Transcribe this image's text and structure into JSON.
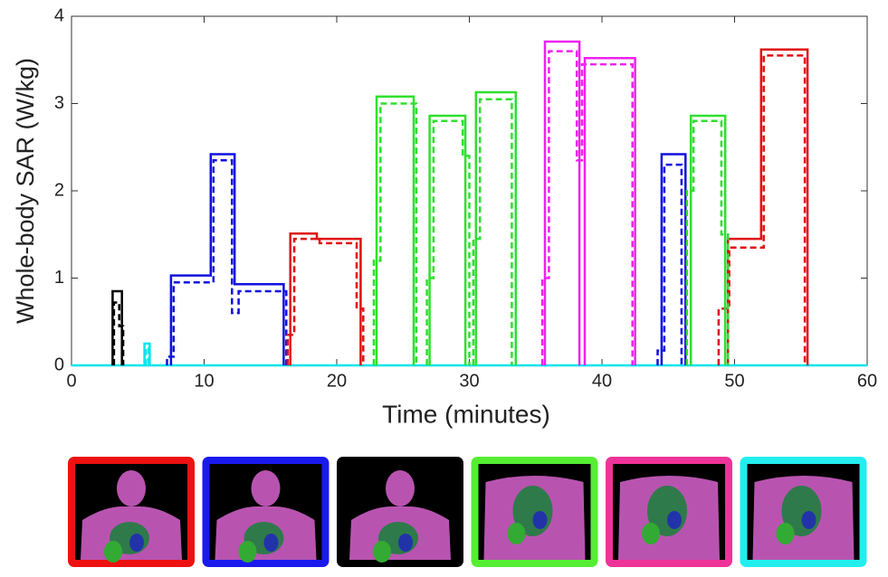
{
  "chart_data": {
    "type": "line",
    "xlabel": "Time (minutes)",
    "ylabel": "Whole-body SAR (W/kg)",
    "xlim": [
      0,
      60
    ],
    "xticks": [
      0,
      10,
      20,
      30,
      40,
      50,
      60
    ],
    "ylim": [
      0,
      4
    ],
    "yticks": [
      0,
      1,
      2,
      3,
      4
    ],
    "series": [
      {
        "color": "#00e5ee",
        "dash": false,
        "x": [
          0,
          60
        ],
        "values": [
          0,
          0
        ]
      },
      {
        "color": "#000000",
        "dash": false,
        "x": [
          3.1,
          3.1,
          3.8,
          3.8
        ],
        "values": [
          0,
          0.85,
          0.85,
          0
        ]
      },
      {
        "color": "#000000",
        "dash": true,
        "x": [
          3.2,
          3.2,
          3.6,
          3.6,
          3.9,
          3.9
        ],
        "values": [
          0,
          0.72,
          0.72,
          0.45,
          0.45,
          0
        ]
      },
      {
        "color": "#00e5ee",
        "dash": false,
        "x": [
          5.5,
          5.5,
          5.9,
          5.9
        ],
        "values": [
          0,
          0.25,
          0.25,
          0
        ]
      },
      {
        "color": "#00e5ee",
        "dash": true,
        "x": [
          5.6,
          5.6,
          5.8,
          5.8
        ],
        "values": [
          0,
          0.2,
          0.2,
          0
        ]
      },
      {
        "color": "#1010e0",
        "dash": false,
        "x": [
          7.5,
          7.5,
          10.5,
          10.5,
          12.3,
          12.3,
          16,
          16,
          16,
          44.5,
          44.5,
          46.3,
          46.3
        ],
        "values": [
          0,
          1.03,
          1.03,
          2.42,
          2.42,
          0.93,
          0.93,
          0,
          null,
          0,
          2.42,
          2.42,
          0
        ]
      },
      {
        "color": "#1010e0",
        "dash": true,
        "x": [
          7.2,
          7.2,
          7.7,
          7.7,
          10.7,
          10.7,
          12.1,
          12.1,
          12.6,
          12.6,
          16.2,
          16.2,
          16.2,
          44.2,
          44.2,
          44.7,
          44.7,
          46,
          46
        ],
        "values": [
          0,
          0.1,
          0.1,
          0.95,
          0.95,
          2.35,
          2.35,
          0.6,
          0.6,
          0.85,
          0.85,
          0,
          null,
          0,
          0.17,
          0.17,
          2.3,
          2.3,
          0
        ]
      },
      {
        "color": "#e01010",
        "dash": false,
        "x": [
          16.5,
          16.5,
          18.5,
          18.5,
          21.8,
          21.8,
          21.8,
          49.5,
          49.5,
          52,
          52,
          55.5,
          55.5
        ],
        "values": [
          0,
          1.51,
          1.51,
          1.45,
          1.45,
          0,
          null,
          0,
          1.45,
          1.45,
          3.62,
          3.62,
          0
        ]
      },
      {
        "color": "#e01010",
        "dash": true,
        "x": [
          16.3,
          16.3,
          16.8,
          16.8,
          18.7,
          18.7,
          21.5,
          21.5,
          22,
          22,
          22,
          48.8,
          48.8,
          49.6,
          49.6,
          52.2,
          52.2,
          55.3,
          55.3
        ],
        "values": [
          0,
          0.35,
          0.35,
          1.45,
          1.45,
          1.4,
          1.4,
          0.65,
          0.65,
          0,
          null,
          0,
          0.65,
          0.65,
          1.35,
          1.35,
          3.55,
          3.55,
          0
        ]
      },
      {
        "color": "#2ee02e",
        "dash": false,
        "x": [
          23,
          23,
          25.8,
          25.8,
          25.8,
          27,
          27,
          29.7,
          29.7,
          29.7,
          30.5,
          30.5,
          33.5,
          33.5,
          33.5,
          46.7,
          46.7,
          49.3,
          49.3
        ],
        "values": [
          0,
          3.08,
          3.08,
          0,
          null,
          0,
          2.86,
          2.86,
          0,
          null,
          0,
          3.13,
          3.13,
          0,
          null,
          0,
          2.86,
          2.86,
          0
        ]
      },
      {
        "color": "#2ee02e",
        "dash": true,
        "x": [
          22.8,
          22.8,
          23.3,
          23.3,
          26,
          26,
          26,
          26.8,
          26.8,
          27.3,
          27.3,
          29.5,
          29.5,
          30,
          30,
          30,
          30.3,
          30.3,
          30.8,
          30.8,
          33.2,
          33.2,
          33.2,
          46.4,
          46.4,
          46.9,
          46.9,
          49,
          49,
          49.5,
          49.5
        ],
        "values": [
          0,
          1.2,
          1.2,
          3.0,
          3.0,
          0,
          null,
          0,
          1.0,
          1.0,
          2.8,
          2.8,
          2.4,
          2.4,
          0,
          null,
          0,
          1.45,
          1.45,
          3.05,
          3.05,
          0,
          null,
          0,
          2.0,
          2.0,
          2.8,
          2.8,
          1.5,
          1.5,
          0
        ]
      },
      {
        "color": "#ee22ee",
        "dash": false,
        "x": [
          35.7,
          35.7,
          38.3,
          38.3,
          38.3,
          38.7,
          38.7,
          42.5,
          42.5
        ],
        "values": [
          0,
          3.71,
          3.71,
          0,
          null,
          0,
          3.52,
          3.52,
          0
        ]
      },
      {
        "color": "#ee22ee",
        "dash": true,
        "x": [
          35.5,
          35.5,
          36,
          36,
          38.1,
          38.1,
          38.5,
          38.5,
          42.3,
          42.3
        ],
        "values": [
          0,
          1.0,
          1.0,
          3.6,
          3.6,
          2.35,
          2.35,
          3.45,
          3.45,
          0
        ]
      }
    ]
  }
}
